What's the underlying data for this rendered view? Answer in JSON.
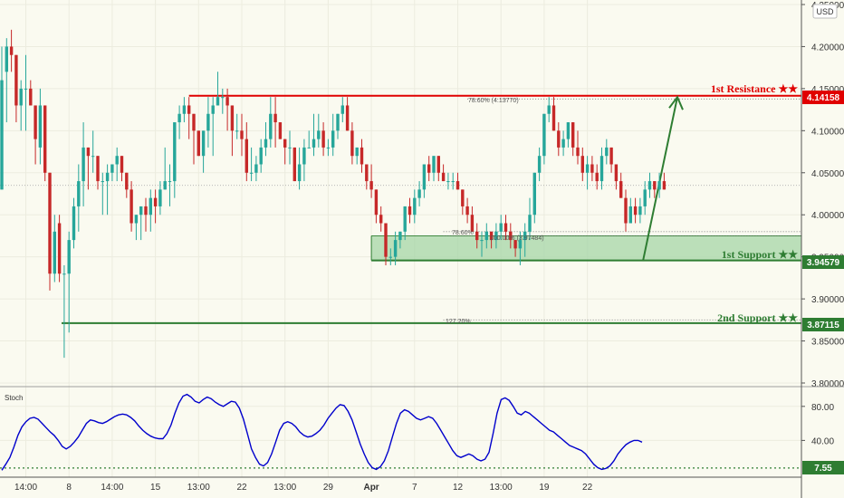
{
  "currency_button": "USD",
  "chart_data": {
    "type": "candlestick",
    "price_ylim": [
      3.8,
      4.25
    ],
    "price_ticks": [
      "4.25000",
      "4.20000",
      "4.15000",
      "4.10000",
      "4.05000",
      "4.00000",
      "3.95000",
      "3.90000",
      "3.85000",
      "3.80000"
    ],
    "price_tick_values": [
      4.25,
      4.2,
      4.15,
      4.1,
      4.05,
      4.0,
      3.95,
      3.9,
      3.85,
      3.8
    ],
    "x_ticks": [
      "14:00",
      "8",
      "14:00",
      "15",
      "13:00",
      "22",
      "13:00",
      "29",
      "Apr",
      "7",
      "12",
      "13:00",
      "19",
      "22"
    ],
    "x_tick_bars": [
      5,
      14,
      23,
      32,
      41,
      50,
      59,
      68,
      77,
      86,
      95,
      104,
      113,
      122
    ],
    "candles": [
      [
        4.03,
        4.2,
        4.03,
        4.16
      ],
      [
        4.17,
        4.21,
        4.11,
        4.2
      ],
      [
        4.2,
        4.22,
        4.17,
        4.19
      ],
      [
        4.19,
        4.19,
        4.11,
        4.13
      ],
      [
        4.13,
        4.16,
        4.1,
        4.15
      ],
      [
        4.15,
        4.19,
        4.1,
        4.15
      ],
      [
        4.15,
        4.16,
        4.13,
        4.13
      ],
      [
        4.13,
        4.13,
        4.06,
        4.09
      ],
      [
        4.08,
        4.15,
        4.06,
        4.13
      ],
      [
        4.13,
        4.13,
        4.04,
        4.05
      ],
      [
        4.05,
        4.05,
        3.91,
        3.93
      ],
      [
        3.93,
        4.0,
        3.92,
        3.98
      ],
      [
        3.99,
        4.0,
        3.92,
        3.93
      ],
      [
        3.93,
        3.94,
        3.83,
        3.93
      ],
      [
        3.93,
        3.98,
        3.86,
        3.97
      ],
      [
        3.97,
        4.02,
        3.96,
        4.01
      ],
      [
        4.01,
        4.06,
        3.98,
        4.04
      ],
      [
        4.04,
        4.11,
        4.01,
        4.08
      ],
      [
        4.08,
        4.08,
        4.03,
        4.07
      ],
      [
        4.07,
        4.1,
        4.05,
        4.07
      ],
      [
        4.07,
        4.07,
        4.03,
        4.04
      ],
      [
        4.04,
        4.05,
        4.0,
        4.04
      ],
      [
        4.04,
        4.06,
        4.0,
        4.05
      ],
      [
        4.05,
        4.06,
        4.04,
        4.06
      ],
      [
        4.06,
        4.08,
        4.04,
        4.07
      ],
      [
        4.07,
        4.07,
        4.04,
        4.05
      ],
      [
        4.05,
        4.05,
        4.02,
        4.03
      ],
      [
        4.03,
        4.04,
        3.98,
        3.99
      ],
      [
        3.99,
        4.0,
        3.97,
        4.0
      ],
      [
        4.0,
        4.01,
        3.97,
        4.01
      ],
      [
        4.01,
        4.02,
        3.98,
        4.0
      ],
      [
        4.0,
        4.03,
        3.98,
        4.02
      ],
      [
        4.02,
        4.03,
        3.99,
        4.01
      ],
      [
        4.01,
        4.04,
        4.0,
        4.03
      ],
      [
        4.03,
        4.08,
        4.03,
        4.04
      ],
      [
        4.04,
        4.06,
        4.01,
        4.04
      ],
      [
        4.04,
        4.11,
        4.02,
        4.11
      ],
      [
        4.11,
        4.13,
        4.09,
        4.12
      ],
      [
        4.12,
        4.14,
        4.11,
        4.13
      ],
      [
        4.13,
        4.14,
        4.09,
        4.12
      ],
      [
        4.12,
        4.12,
        4.06,
        4.1
      ],
      [
        4.1,
        4.1,
        4.07,
        4.07
      ],
      [
        4.07,
        4.1,
        4.05,
        4.1
      ],
      [
        4.1,
        4.14,
        4.08,
        4.12
      ],
      [
        4.12,
        4.14,
        4.07,
        4.13
      ],
      [
        4.13,
        4.17,
        4.13,
        4.14
      ],
      [
        4.14,
        4.15,
        4.12,
        4.14
      ],
      [
        4.14,
        4.15,
        4.1,
        4.13
      ],
      [
        4.13,
        4.13,
        4.07,
        4.1
      ],
      [
        4.1,
        4.12,
        4.09,
        4.1
      ],
      [
        4.1,
        4.12,
        4.07,
        4.09
      ],
      [
        4.09,
        4.11,
        4.04,
        4.05
      ],
      [
        4.05,
        4.08,
        4.04,
        4.05
      ],
      [
        4.05,
        4.07,
        4.04,
        4.06
      ],
      [
        4.06,
        4.09,
        4.05,
        4.08
      ],
      [
        4.08,
        4.11,
        4.07,
        4.09
      ],
      [
        4.09,
        4.14,
        4.08,
        4.12
      ],
      [
        4.12,
        4.14,
        4.08,
        4.11
      ],
      [
        4.11,
        4.11,
        4.09,
        4.09
      ],
      [
        4.09,
        4.09,
        4.06,
        4.08
      ],
      [
        4.08,
        4.1,
        4.06,
        4.08
      ],
      [
        4.08,
        4.08,
        4.04,
        4.04
      ],
      [
        4.04,
        4.08,
        4.03,
        4.06
      ],
      [
        4.06,
        4.09,
        4.04,
        4.08
      ],
      [
        4.08,
        4.1,
        4.08,
        4.08
      ],
      [
        4.08,
        4.12,
        4.07,
        4.09
      ],
      [
        4.09,
        4.12,
        4.08,
        4.1
      ],
      [
        4.1,
        4.11,
        4.07,
        4.08
      ],
      [
        4.08,
        4.09,
        4.07,
        4.08
      ],
      [
        4.08,
        4.12,
        4.07,
        4.1
      ],
      [
        4.1,
        4.12,
        4.09,
        4.12
      ],
      [
        4.12,
        4.14,
        4.11,
        4.13
      ],
      [
        4.13,
        4.14,
        4.1,
        4.1
      ],
      [
        4.1,
        4.11,
        4.06,
        4.07
      ],
      [
        4.07,
        4.08,
        4.06,
        4.08
      ],
      [
        4.08,
        4.09,
        4.05,
        4.06
      ],
      [
        4.06,
        4.06,
        4.03,
        4.04
      ],
      [
        4.04,
        4.06,
        4.02,
        4.03
      ],
      [
        4.03,
        4.03,
        3.99,
        4.0
      ],
      [
        4.0,
        4.01,
        3.98,
        3.99
      ],
      [
        3.99,
        3.99,
        3.94,
        3.95
      ],
      [
        3.95,
        3.96,
        3.94,
        3.95
      ],
      [
        3.95,
        3.98,
        3.94,
        3.97
      ],
      [
        3.97,
        3.98,
        3.96,
        3.98
      ],
      [
        3.98,
        4.01,
        3.97,
        4.01
      ],
      [
        4.01,
        4.02,
        3.99,
        4.0
      ],
      [
        4.0,
        4.03,
        3.99,
        4.02
      ],
      [
        4.02,
        4.04,
        4.01,
        4.03
      ],
      [
        4.03,
        4.06,
        4.02,
        4.06
      ],
      [
        4.06,
        4.07,
        4.04,
        4.05
      ],
      [
        4.05,
        4.07,
        4.04,
        4.07
      ],
      [
        4.07,
        4.07,
        4.04,
        4.05
      ],
      [
        4.05,
        4.06,
        4.04,
        4.04
      ],
      [
        4.04,
        4.05,
        4.03,
        4.04
      ],
      [
        4.04,
        4.05,
        4.03,
        4.04
      ],
      [
        4.04,
        4.05,
        4.03,
        4.03
      ],
      [
        4.03,
        4.03,
        4.0,
        4.01
      ],
      [
        4.01,
        4.02,
        3.99,
        4.0
      ],
      [
        4.0,
        4.01,
        3.98,
        3.98
      ],
      [
        3.98,
        3.99,
        3.96,
        3.97
      ],
      [
        3.97,
        3.98,
        3.95,
        3.97
      ],
      [
        3.97,
        3.99,
        3.96,
        3.98
      ],
      [
        3.98,
        3.98,
        3.96,
        3.97
      ],
      [
        3.97,
        3.99,
        3.96,
        3.98
      ],
      [
        3.98,
        4.0,
        3.97,
        3.99
      ],
      [
        3.99,
        4.0,
        3.97,
        3.98
      ],
      [
        3.98,
        3.99,
        3.96,
        3.97
      ],
      [
        3.97,
        3.97,
        3.95,
        3.96
      ],
      [
        3.96,
        3.98,
        3.94,
        3.97
      ],
      [
        3.97,
        3.99,
        3.95,
        3.98
      ],
      [
        3.98,
        4.02,
        3.97,
        4.0
      ],
      [
        4.0,
        4.05,
        3.99,
        4.05
      ],
      [
        4.05,
        4.08,
        4.04,
        4.07
      ],
      [
        4.07,
        4.12,
        4.06,
        4.12
      ],
      [
        4.12,
        4.14,
        4.11,
        4.13
      ],
      [
        4.13,
        4.14,
        4.1,
        4.1
      ],
      [
        4.1,
        4.11,
        4.07,
        4.08
      ],
      [
        4.08,
        4.1,
        4.07,
        4.09
      ],
      [
        4.09,
        4.11,
        4.08,
        4.11
      ],
      [
        4.11,
        4.11,
        4.07,
        4.08
      ],
      [
        4.08,
        4.1,
        4.06,
        4.07
      ],
      [
        4.07,
        4.08,
        4.04,
        4.05
      ],
      [
        4.05,
        4.07,
        4.03,
        4.06
      ],
      [
        4.06,
        4.07,
        4.04,
        4.05
      ],
      [
        4.05,
        4.06,
        4.03,
        4.04
      ],
      [
        4.04,
        4.08,
        4.03,
        4.07
      ],
      [
        4.07,
        4.09,
        4.06,
        4.08
      ],
      [
        4.08,
        4.08,
        4.05,
        4.06
      ],
      [
        4.06,
        4.06,
        4.03,
        4.04
      ],
      [
        4.04,
        4.05,
        4.02,
        4.02
      ],
      [
        4.02,
        4.03,
        3.98,
        3.99
      ],
      [
        3.99,
        4.02,
        3.99,
        4.01
      ],
      [
        4.01,
        4.02,
        3.99,
        4.0
      ],
      [
        4.0,
        4.02,
        3.99,
        4.01
      ],
      [
        4.01,
        4.04,
        4.0,
        4.03
      ],
      [
        4.03,
        4.05,
        4.02,
        4.04
      ],
      [
        4.04,
        4.04,
        4.02,
        4.03
      ],
      [
        4.03,
        4.05,
        4.02,
        4.04
      ],
      [
        4.04,
        4.05,
        4.03,
        4.03
      ]
    ],
    "stoch_ylim": [
      0,
      100
    ],
    "stoch_ticks": [
      "80.00",
      "40.00"
    ],
    "stoch_tick_values": [
      80,
      40
    ],
    "stoch_label": "Stoch",
    "stoch_values": [
      5,
      12,
      20,
      32,
      46,
      56,
      62,
      66,
      67,
      65,
      60,
      55,
      50,
      46,
      40,
      33,
      30,
      33,
      38,
      44,
      52,
      60,
      64,
      63,
      61,
      60,
      62,
      65,
      68,
      70,
      71,
      70,
      67,
      63,
      57,
      52,
      48,
      45,
      43,
      42,
      42,
      48,
      58,
      72,
      84,
      92,
      94,
      91,
      86,
      84,
      88,
      91,
      89,
      85,
      82,
      80,
      83,
      86,
      85,
      78,
      65,
      48,
      30,
      20,
      12,
      10,
      14,
      24,
      38,
      52,
      60,
      62,
      60,
      56,
      50,
      46,
      44,
      45,
      48,
      52,
      58,
      66,
      72,
      78,
      82,
      81,
      74,
      64,
      50,
      36,
      24,
      14,
      8,
      6,
      9,
      16,
      28,
      44,
      60,
      72,
      76,
      74,
      70,
      66,
      64,
      66,
      68,
      66,
      60,
      52,
      44,
      36,
      28,
      22,
      20,
      22,
      24,
      22,
      18,
      16,
      18,
      26,
      48,
      72,
      88,
      90,
      87,
      80,
      72,
      70,
      74,
      72,
      68,
      64,
      60,
      56,
      52,
      50,
      46,
      42,
      38,
      34,
      32,
      30,
      28,
      24,
      18,
      12,
      8,
      6,
      7,
      10,
      16,
      24,
      30,
      35,
      38,
      40,
      40,
      38
    ]
  },
  "levels": {
    "resistance": {
      "label": "1st Resistance ★★",
      "price": "4.14158",
      "color": "#e00000"
    },
    "support1": {
      "label": "1st Support ★★",
      "price": "3.94579",
      "color": "#2e7d32"
    },
    "support2": {
      "label": "2nd Support ★★",
      "price": "3.87115",
      "color": "#2e7d32"
    },
    "stoch_level": {
      "price": "7.55",
      "color": "#2e7d32"
    }
  },
  "fib_labels": {
    "r1": "78.60% (4.13770)",
    "s1": "100.00% (3.97484)",
    "s1b": "78.60%",
    "s2": "127.20%"
  },
  "colors": {
    "up": "#26a69a",
    "down": "#c62828",
    "support_zone": "#a5d6a7",
    "stoch_line": "#0000cc",
    "arrow": "#2e7d32"
  }
}
